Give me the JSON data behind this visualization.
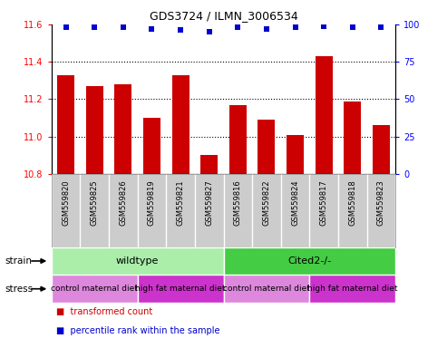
{
  "title": "GDS3724 / ILMN_3006534",
  "samples": [
    "GSM559820",
    "GSM559825",
    "GSM559826",
    "GSM559819",
    "GSM559821",
    "GSM559827",
    "GSM559816",
    "GSM559822",
    "GSM559824",
    "GSM559817",
    "GSM559818",
    "GSM559823"
  ],
  "bar_values": [
    11.33,
    11.27,
    11.28,
    11.1,
    11.33,
    10.9,
    11.17,
    11.09,
    11.01,
    11.43,
    11.19,
    11.06
  ],
  "percentile_values": [
    98,
    98,
    98,
    97,
    96,
    95,
    98,
    97,
    98,
    99,
    98,
    98
  ],
  "bar_color": "#cc0000",
  "percentile_color": "#0000cc",
  "ylim_left": [
    10.8,
    11.6
  ],
  "ylim_right": [
    0,
    100
  ],
  "yticks_left": [
    10.8,
    11.0,
    11.2,
    11.4,
    11.6
  ],
  "yticks_right": [
    0,
    25,
    50,
    75,
    100
  ],
  "dotted_lines": [
    11.0,
    11.2,
    11.4
  ],
  "strain_groups": [
    {
      "label": "wildtype",
      "start": 0,
      "end": 6,
      "color": "#aaeeaa"
    },
    {
      "label": "Cited2-/-",
      "start": 6,
      "end": 12,
      "color": "#44cc44"
    }
  ],
  "stress_groups": [
    {
      "label": "control maternal diet",
      "start": 0,
      "end": 3,
      "color": "#dd88dd"
    },
    {
      "label": "high fat maternal diet",
      "start": 3,
      "end": 6,
      "color": "#cc33cc"
    },
    {
      "label": "control maternal diet",
      "start": 6,
      "end": 9,
      "color": "#dd88dd"
    },
    {
      "label": "high fat maternal diet",
      "start": 9,
      "end": 12,
      "color": "#cc33cc"
    }
  ],
  "legend_items": [
    {
      "label": "transformed count",
      "color": "#cc0000"
    },
    {
      "label": "percentile rank within the sample",
      "color": "#0000cc"
    }
  ],
  "bar_width": 0.6,
  "background_color": "#ffffff",
  "strain_label": "strain",
  "stress_label": "stress",
  "sample_bg_color": "#cccccc",
  "sample_sep_color": "#ffffff"
}
